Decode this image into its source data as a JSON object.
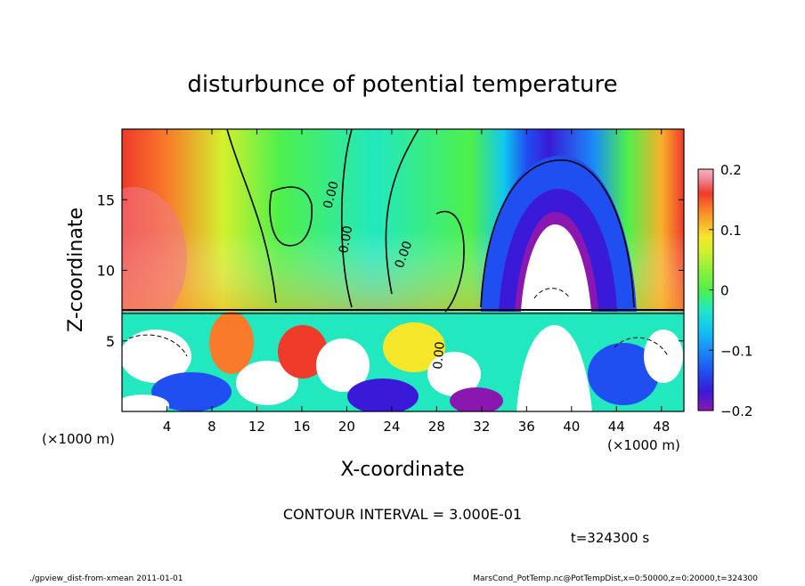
{
  "chart_data": {
    "type": "heatmap",
    "title": "disturbunce of potential temperature",
    "xlabel": "X-coordinate",
    "ylabel": "Z-coordinate",
    "x_unit_left": "(×1000 m)",
    "x_unit_right": "(×1000 m)",
    "xlim": [
      0,
      50
    ],
    "ylim": [
      0,
      20
    ],
    "x_ticks": [
      4,
      8,
      12,
      16,
      20,
      24,
      28,
      32,
      36,
      40,
      44,
      48
    ],
    "x_tick_labels": [
      "4",
      "8",
      "12",
      "16",
      "20",
      "24",
      "28",
      "32",
      "36",
      "40",
      "44",
      "48"
    ],
    "y_ticks": [
      5,
      10,
      15
    ],
    "y_tick_labels": [
      "5",
      "10",
      "15"
    ],
    "colorbar": {
      "range": [
        -0.2,
        0.2
      ],
      "ticks": [
        0.2,
        0.1,
        0,
        -0.1,
        -0.2
      ],
      "tick_labels": [
        "0.2",
        "0.1",
        "0",
        "−0.1",
        "−0.2"
      ],
      "colors": [
        "#8a18b0",
        "#3a1ad8",
        "#1f4ff0",
        "#1a8cf8",
        "#10c8f0",
        "#22e8c0",
        "#4ef04a",
        "#8cf03c",
        "#d2f02c",
        "#f6e62a",
        "#f8b02a",
        "#f87a2a",
        "#f03a2a",
        "#e62a3a",
        "#f07a8a",
        "#f8b4bc"
      ]
    },
    "contour_labels": [
      "0.00",
      "0.00",
      "0.00",
      "0.00"
    ],
    "contour_interval_text": "CONTOUR INTERVAL = 3.000E-01",
    "time_text": "t=324300 s"
  },
  "footer": {
    "left": "./gpview_dist-from-xmean  2011-01-01",
    "right": "MarsCond_PotTemp.nc@PotTempDist,x=0:50000,z=0:20000,t=324300"
  },
  "colors": {
    "background": "#ffffff",
    "foreground": "#000000"
  }
}
